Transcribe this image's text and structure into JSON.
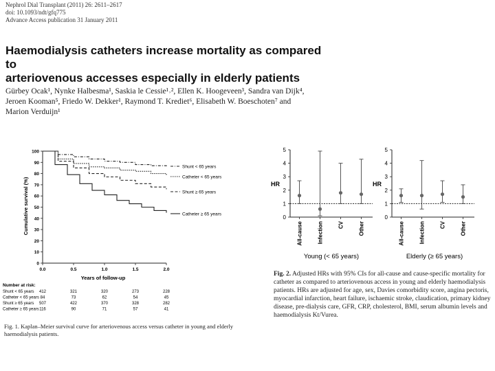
{
  "header": {
    "journal_line": "Nephrol Dial Transplant (2011) 26: 2611–2617",
    "doi_line": "doi: 10.1093/ndt/gfq775",
    "advance_line": "Advance Access publication 31 January 2011"
  },
  "paper_title": {
    "line1": "Haemodialysis catheters increase mortality as compared to",
    "line2": "arteriovenous accesses especially in elderly patients"
  },
  "authors": {
    "line1": "Gürbey Ocak¹, Nynke Halbesma¹, Saskia le Cessie¹˒², Ellen K. Hoogeveen³, Sandra van Dijk⁴,",
    "line2": "Jeroen Kooman⁵, Friedo W. Dekker¹, Raymond T. Krediet⁶, Elisabeth W. Boeschoten⁷ and",
    "line3": "Marion Verduijn¹"
  },
  "fig1": {
    "caption": "Fig. 1. Kaplan–Meier survival curve for arteriovenous access versus catheter in young and elderly haemodialysis patients.",
    "number_at_risk_label": "Number at risk:",
    "risk_rows": [
      {
        "label": "Shunt < 65 years",
        "values": [
          "412",
          "321",
          "320",
          "273",
          "228"
        ]
      },
      {
        "label": "Catheter < 65 years",
        "values": [
          "84",
          "73",
          "62",
          "54",
          "45"
        ]
      },
      {
        "label": "Shunt ≥ 65 years",
        "values": [
          "507",
          "422",
          "370",
          "328",
          "282"
        ]
      },
      {
        "label": "Catheter ≥ 65 years",
        "values": [
          "116",
          "90",
          "71",
          "57",
          "41"
        ]
      }
    ],
    "chart_data": {
      "type": "line",
      "xlabel": "Years of follow-up",
      "ylabel": "Cumulative survival (%)",
      "xlim": [
        0,
        2
      ],
      "ylim": [
        0,
        100
      ],
      "x_ticks": [
        "0.0",
        "0.5",
        "1.0",
        "1.5",
        "2.0"
      ],
      "y_ticks": [
        "0",
        "10",
        "20",
        "30",
        "40",
        "50",
        "60",
        "70",
        "80",
        "90",
        "100"
      ],
      "series": [
        {
          "name": "Shunt < 65 years",
          "style": "dash-dot",
          "x": [
            0,
            0.25,
            0.5,
            0.75,
            1.0,
            1.25,
            1.5,
            1.75,
            2.0
          ],
          "y": [
            100,
            97,
            95,
            93,
            91,
            90,
            88,
            87,
            86
          ]
        },
        {
          "name": "Catheter < 65 years",
          "style": "dotted",
          "x": [
            0,
            0.25,
            0.5,
            0.75,
            1.0,
            1.25,
            1.5,
            1.75,
            2.0
          ],
          "y": [
            100,
            93,
            89,
            86,
            85,
            83,
            82,
            80,
            78
          ]
        },
        {
          "name": "Shunt ≥ 65 years",
          "style": "dashed",
          "x": [
            0,
            0.25,
            0.5,
            0.75,
            1.0,
            1.25,
            1.5,
            1.75,
            2.0
          ],
          "y": [
            100,
            91,
            85,
            80,
            77,
            74,
            71,
            68,
            66
          ]
        },
        {
          "name": "Catheter ≥ 65 years",
          "style": "solid",
          "x": [
            0,
            0.2,
            0.4,
            0.6,
            0.8,
            1.0,
            1.2,
            1.4,
            1.6,
            1.8,
            2.0
          ],
          "y": [
            100,
            88,
            79,
            71,
            65,
            61,
            56,
            53,
            50,
            47,
            45
          ]
        }
      ]
    }
  },
  "fig2": {
    "caption_label": "Fig. 2.",
    "caption_text": "Adjusted HRs with 95% CIs for all-cause and cause-specific mortality for catheter as compared to arteriovenous access in young and elderly haemodialysis patients. HRs are adjusted for age, sex, Davies comorbidity score, angina pectoris, myocardial infarction, heart failure, ischaemic stroke, claudication, primary kidney disease, pre-dialysis care, GFR, CRP, cholesterol, BMI, serum albumin levels and haemodialysis Kt/Vurea.",
    "chart_data": [
      {
        "type": "scatter",
        "title": "Young (< 65 years)",
        "ylabel": "HR",
        "ylim": [
          0,
          5
        ],
        "y_ticks": [
          "0",
          "1",
          "2",
          "3",
          "4",
          "5"
        ],
        "reference_line": 1,
        "categories": [
          "All-cause",
          "Infection",
          "CV",
          "Other"
        ],
        "values": [
          1.6,
          0.6,
          1.8,
          1.7
        ],
        "ci_low": [
          1.0,
          0.1,
          1.0,
          1.0
        ],
        "ci_high": [
          2.7,
          4.9,
          4.0,
          4.3
        ]
      },
      {
        "type": "scatter",
        "title": "Elderly (≥ 65 years)",
        "ylabel": "HR",
        "ylim": [
          0,
          5
        ],
        "y_ticks": [
          "0",
          "1",
          "2",
          "3",
          "4",
          "5"
        ],
        "reference_line": 1,
        "categories": [
          "All-cause",
          "Infection",
          "CV",
          "Other"
        ],
        "values": [
          1.6,
          1.6,
          1.7,
          1.5
        ],
        "ci_low": [
          1.1,
          0.6,
          1.1,
          1.0
        ],
        "ci_high": [
          2.1,
          4.2,
          2.7,
          2.4
        ]
      }
    ]
  }
}
